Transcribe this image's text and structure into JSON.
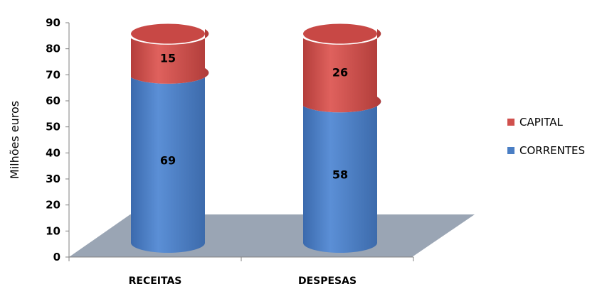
{
  "chart_data": {
    "type": "bar",
    "stacked": true,
    "style": "3d-cylinder",
    "categories": [
      "RECEITAS",
      "DESPESAS"
    ],
    "series": [
      {
        "name": "CORRENTES",
        "values": [
          69,
          58
        ],
        "color": "#4a7ec4"
      },
      {
        "name": "CAPITAL",
        "values": [
          15,
          26
        ],
        "color": "#d0504d"
      }
    ],
    "title": "",
    "xlabel": "",
    "ylabel": "Milhões euros",
    "ylim": [
      0,
      90
    ],
    "yticks": [
      0,
      10,
      20,
      30,
      40,
      50,
      60,
      70,
      80,
      90
    ],
    "legend_position": "right",
    "grid": false,
    "floor_color": "#9aa5b4"
  }
}
